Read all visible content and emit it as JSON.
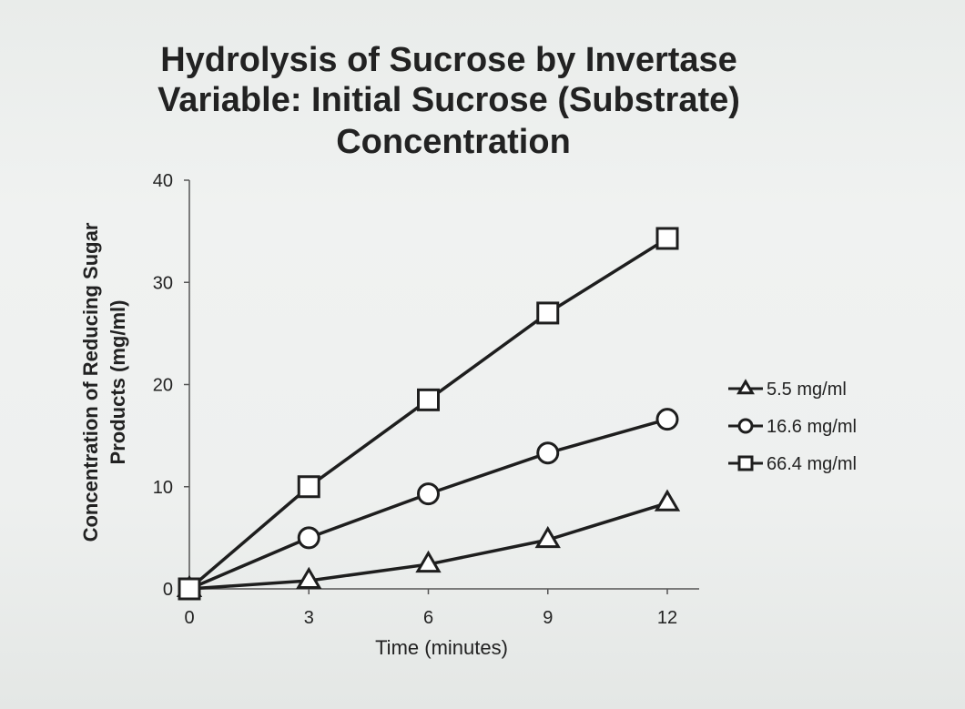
{
  "chart_data": {
    "type": "line",
    "title_lines": [
      "Hydrolysis of Sucrose by Invertase",
      "Variable: Initial Sucrose (Substrate)",
      "Concentration"
    ],
    "xlabel": "Time (minutes)",
    "ylabel_lines": [
      "Concentration of Reducing Sugar",
      "Products (mg/ml)"
    ],
    "x": [
      0,
      3,
      6,
      9,
      12
    ],
    "x_ticks": [
      "0",
      "3",
      "6",
      "9",
      "12"
    ],
    "y_ticks": [
      "0",
      "10",
      "20",
      "30",
      "40"
    ],
    "xlim": [
      0,
      12.8
    ],
    "ylim": [
      0,
      40
    ],
    "grid": false,
    "legend_position": "right",
    "series": [
      {
        "name": "5.5 mg/ml",
        "marker": "triangle",
        "values": [
          0,
          0.8,
          2.4,
          4.8,
          8.4
        ]
      },
      {
        "name": "16.6 mg/ml",
        "marker": "circle",
        "values": [
          0,
          5.0,
          9.3,
          13.3,
          16.6
        ]
      },
      {
        "name": "66.4 mg/ml",
        "marker": "square",
        "values": [
          0,
          10.0,
          18.5,
          27.0,
          34.3
        ]
      }
    ],
    "colors": {
      "line": "#1e1e1e",
      "marker_fill": "#ffffff"
    }
  }
}
